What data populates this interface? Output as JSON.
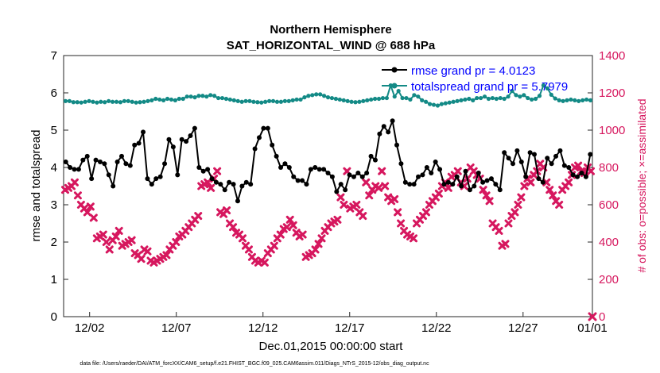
{
  "chart_data": {
    "type": "line",
    "title": [
      "Northern Hemisphere",
      "SAT_HORIZONTAL_WIND @ 688 hPa"
    ],
    "xlabel": "Dec.01,2015 00:00:00 start",
    "ylabel_left": "rmse and totalspread",
    "ylabel_right": "# of obs: o=possible; ×=assimilated",
    "ylim_left": [
      0,
      7
    ],
    "ylim_right": [
      0,
      1400
    ],
    "xlim": [
      0.5,
      31
    ],
    "yticks_left": [
      "0",
      "1",
      "2",
      "3",
      "4",
      "5",
      "6",
      "7"
    ],
    "yticks_right": [
      "0",
      "200",
      "400",
      "600",
      "800",
      "1000",
      "1200",
      "1400"
    ],
    "xticks": [
      {
        "x": 2,
        "label": "12/02"
      },
      {
        "x": 7,
        "label": "12/07"
      },
      {
        "x": 12,
        "label": "12/12"
      },
      {
        "x": 17,
        "label": "12/17"
      },
      {
        "x": 22,
        "label": "12/22"
      },
      {
        "x": 27,
        "label": "12/27"
      },
      {
        "x": 32,
        "label": "01/01"
      }
    ],
    "colors": {
      "rmse": "#000000",
      "totalspread": "#138a86",
      "obs": "#d6175e",
      "legend_text": "#0000ff",
      "right_axis": "#d6175e"
    },
    "legend": {
      "position": "top-right",
      "entries": [
        "rmse grand pr = 4.0123",
        "totalspread grand pr = 5.7979"
      ]
    },
    "series": [
      {
        "name": "rmse grand pr = 4.0123",
        "axis": "left",
        "values": [
          4.15,
          4.0,
          3.95,
          3.95,
          4.2,
          4.3,
          3.7,
          4.2,
          4.15,
          4.1,
          3.8,
          3.5,
          4.15,
          4.3,
          4.1,
          4.05,
          4.6,
          4.65,
          4.95,
          3.7,
          3.55,
          3.7,
          3.75,
          4.1,
          4.75,
          4.55,
          3.8,
          4.75,
          4.7,
          4.85,
          5.05,
          4.0,
          3.9,
          3.95,
          3.7,
          3.6,
          3.55,
          3.4,
          3.6,
          3.55,
          3.1,
          3.5,
          3.6,
          3.55,
          4.5,
          4.8,
          5.05,
          5.05,
          4.6,
          4.3,
          4.0,
          4.1,
          4.0,
          3.75,
          3.65,
          3.65,
          3.55,
          3.95,
          4.0,
          3.95,
          3.95,
          3.85,
          3.75,
          3.35,
          3.55,
          3.4,
          3.8,
          3.75,
          3.85,
          3.75,
          3.85,
          4.3,
          4.2,
          4.9,
          5.1,
          4.95,
          5.25,
          4.6,
          4.1,
          3.6,
          3.55,
          3.55,
          3.75,
          3.8,
          4.0,
          3.85,
          4.15,
          3.95,
          3.55,
          3.6,
          3.55,
          3.75,
          3.5,
          3.9,
          3.4,
          3.5,
          3.85,
          3.6,
          3.65,
          3.7,
          3.55,
          3.4,
          4.4,
          4.25,
          4.1,
          4.45,
          4.15,
          3.75,
          4.4,
          4.35,
          3.7,
          3.6,
          4.25,
          4.1,
          4.3,
          4.45,
          4.05,
          4.0,
          3.8,
          3.75,
          3.85,
          3.75,
          4.35
        ]
      },
      {
        "name": "totalspread grand pr = 5.7979",
        "axis": "left",
        "values": [
          5.78,
          5.78,
          5.75,
          5.75,
          5.74,
          5.76,
          5.78,
          5.76,
          5.74,
          5.76,
          5.75,
          5.78,
          5.76,
          5.76,
          5.75,
          5.78,
          5.78,
          5.76,
          5.74,
          5.75,
          5.76,
          5.78,
          5.8,
          5.84,
          5.82,
          5.8,
          5.84,
          5.82,
          5.8,
          5.84,
          5.84,
          5.9,
          5.9,
          5.88,
          5.92,
          5.92,
          5.9,
          5.94,
          5.92,
          5.86,
          5.86,
          5.84,
          5.82,
          5.8,
          5.78,
          5.76,
          5.78,
          5.78,
          5.76,
          5.75,
          5.74,
          5.76,
          5.78,
          5.78,
          5.76,
          5.76,
          5.78,
          5.78,
          5.8,
          5.82,
          5.82,
          5.88,
          5.92,
          5.94,
          5.96,
          5.96,
          5.92,
          5.88,
          5.86,
          5.84,
          5.82,
          5.8,
          5.78,
          5.76,
          5.75,
          5.76,
          5.78,
          5.8,
          5.82,
          5.84,
          5.84,
          5.86,
          5.86,
          6.2,
          5.9,
          6.05,
          5.86,
          5.86,
          5.82,
          5.94,
          5.9,
          5.8,
          5.76,
          5.7,
          5.68,
          5.66,
          5.7,
          5.72,
          5.74,
          5.76,
          5.78,
          5.8,
          5.82,
          5.84,
          5.8,
          5.86,
          5.86,
          5.9,
          5.84,
          5.86,
          5.84,
          5.86,
          5.84,
          5.9,
          6.05,
          5.94,
          5.9,
          5.94,
          5.86,
          5.82,
          5.84,
          5.92,
          6.2,
          6.12,
          5.95,
          5.85,
          5.8,
          5.78,
          5.8,
          5.82,
          5.8,
          5.78,
          5.8,
          5.82,
          5.8
        ]
      },
      {
        "name": "",
        "axis": "right",
        "marker": "x",
        "values": [
          680,
          690,
          700,
          720,
          650,
          600,
          580,
          560,
          590,
          530,
          420,
          430,
          440,
          400,
          360,
          410,
          430,
          460,
          380,
          390,
          400,
          410,
          340,
          330,
          310,
          360,
          350,
          300,
          290,
          300,
          310,
          320,
          330,
          360,
          380,
          400,
          430,
          440,
          460,
          480,
          500,
          520,
          540,
          700,
          710,
          720,
          690,
          740,
          780,
          560,
          550,
          570,
          500,
          480,
          450,
          440,
          420,
          380,
          360,
          320,
          300,
          290,
          300,
          290,
          340,
          360,
          380,
          420,
          440,
          470,
          480,
          520,
          490,
          450,
          430,
          440,
          320,
          330,
          340,
          360,
          390,
          420,
          460,
          480,
          500,
          510,
          520,
          640,
          600,
          780,
          580,
          590,
          600,
          560,
          540,
          720,
          650,
          680,
          700,
          690,
          780,
          700,
          640,
          620,
          630,
          560,
          500,
          460,
          440,
          430,
          420,
          500,
          520,
          540,
          560,
          600,
          620,
          640,
          660,
          700,
          720,
          690,
          750,
          760,
          780,
          720,
          700,
          740,
          800,
          780,
          760,
          740,
          680,
          650,
          620,
          500,
          480,
          460,
          380,
          390,
          500,
          540,
          560,
          600,
          640,
          700,
          740,
          720,
          760,
          780,
          820,
          800,
          720,
          680,
          650,
          620,
          600,
          680,
          700,
          720,
          760,
          800,
          810,
          780,
          770,
          800,
          780
        ]
      }
    ]
  },
  "footer": {
    "data_file": "data file: /Users/raeder/DAI/ATM_forcXX/CAM6_setup/f.e21.FHIST_BGC.f09_025.CAM6assim.011/Diags_NTrS_2015-12/obs_diag_output.nc"
  }
}
